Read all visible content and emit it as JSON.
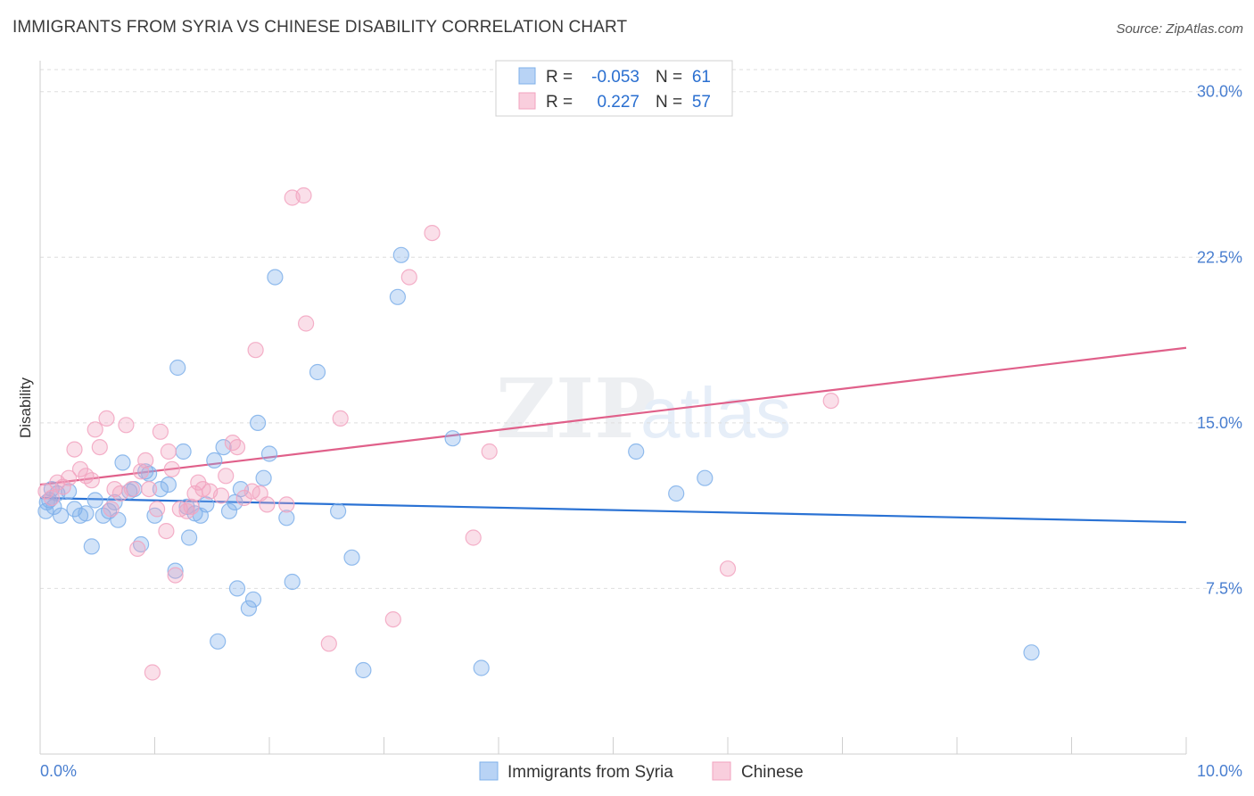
{
  "header": {
    "title": "IMMIGRANTS FROM SYRIA VS CHINESE DISABILITY CORRELATION CHART",
    "source": "Source: ZipAtlas.com"
  },
  "watermark": {
    "zip": "ZIP",
    "atlas": "atlas"
  },
  "legend": {
    "r_label": "R =",
    "n_label": "N =",
    "rows": [
      {
        "r_value": "-0.053",
        "n_value": "61"
      },
      {
        "r_value": "0.227",
        "n_value": "57"
      }
    ]
  },
  "colors": {
    "syria": "#7fb0ea",
    "chinese": "#f2a3bf",
    "syria_line": "#2a72d4",
    "chinese_line": "#e0608a",
    "value_text": "#2a6fd0",
    "grid": "#dedede"
  },
  "chart_data": {
    "type": "scatter",
    "title": "IMMIGRANTS FROM SYRIA VS CHINESE DISABILITY CORRELATION CHART",
    "xlabel": "",
    "ylabel": "Disability",
    "xlim": [
      0,
      10
    ],
    "ylim": [
      0,
      31
    ],
    "x_tick_labels": [
      "0.0%",
      "10.0%"
    ],
    "y_ticks": [
      7.5,
      15.0,
      22.5,
      30.0
    ],
    "y_tick_labels": [
      "7.5%",
      "15.0%",
      "22.5%",
      "30.0%"
    ],
    "grid": true,
    "series": [
      {
        "name": "Immigrants from Syria",
        "r": -0.053,
        "n": 61,
        "trend": {
          "x": [
            0,
            10
          ],
          "y": [
            11.6,
            10.5
          ]
        },
        "points": [
          [
            0.05,
            11.0
          ],
          [
            0.08,
            11.5
          ],
          [
            0.1,
            12.0
          ],
          [
            0.12,
            11.2
          ],
          [
            0.15,
            11.8
          ],
          [
            0.18,
            10.8
          ],
          [
            0.25,
            11.9
          ],
          [
            0.3,
            11.1
          ],
          [
            0.35,
            10.8
          ],
          [
            0.4,
            10.9
          ],
          [
            0.45,
            9.4
          ],
          [
            0.48,
            11.5
          ],
          [
            0.55,
            10.8
          ],
          [
            0.6,
            11.0
          ],
          [
            0.65,
            11.4
          ],
          [
            0.68,
            10.6
          ],
          [
            0.72,
            13.2
          ],
          [
            0.78,
            11.9
          ],
          [
            0.82,
            12.0
          ],
          [
            0.88,
            9.5
          ],
          [
            0.92,
            12.8
          ],
          [
            0.95,
            12.7
          ],
          [
            1.0,
            10.8
          ],
          [
            1.05,
            12.0
          ],
          [
            1.12,
            12.2
          ],
          [
            1.18,
            8.3
          ],
          [
            1.2,
            17.5
          ],
          [
            1.25,
            13.7
          ],
          [
            1.28,
            11.2
          ],
          [
            1.3,
            9.8
          ],
          [
            1.35,
            10.9
          ],
          [
            1.4,
            10.8
          ],
          [
            1.45,
            11.3
          ],
          [
            1.52,
            13.3
          ],
          [
            1.55,
            5.1
          ],
          [
            1.6,
            13.9
          ],
          [
            1.65,
            11.0
          ],
          [
            1.7,
            11.4
          ],
          [
            1.72,
            7.5
          ],
          [
            1.75,
            12.0
          ],
          [
            1.82,
            6.6
          ],
          [
            1.86,
            7.0
          ],
          [
            1.9,
            15.0
          ],
          [
            1.95,
            12.5
          ],
          [
            2.0,
            13.6
          ],
          [
            2.05,
            21.6
          ],
          [
            2.15,
            10.7
          ],
          [
            2.2,
            7.8
          ],
          [
            2.42,
            17.3
          ],
          [
            2.6,
            11.0
          ],
          [
            2.72,
            8.9
          ],
          [
            2.82,
            3.8
          ],
          [
            3.12,
            20.7
          ],
          [
            3.15,
            22.6
          ],
          [
            3.6,
            14.3
          ],
          [
            3.85,
            3.9
          ],
          [
            5.2,
            13.7
          ],
          [
            5.55,
            11.8
          ],
          [
            5.8,
            12.5
          ],
          [
            8.65,
            4.6
          ],
          [
            0.06,
            11.4
          ]
        ]
      },
      {
        "name": "Chinese",
        "r": 0.227,
        "n": 57,
        "trend": {
          "x": [
            0,
            10
          ],
          "y": [
            12.2,
            18.4
          ]
        },
        "points": [
          [
            0.05,
            11.9
          ],
          [
            0.1,
            11.6
          ],
          [
            0.15,
            12.3
          ],
          [
            0.2,
            12.1
          ],
          [
            0.25,
            12.5
          ],
          [
            0.3,
            13.8
          ],
          [
            0.35,
            12.9
          ],
          [
            0.4,
            12.6
          ],
          [
            0.45,
            12.4
          ],
          [
            0.48,
            14.7
          ],
          [
            0.52,
            13.9
          ],
          [
            0.58,
            15.2
          ],
          [
            0.62,
            11.1
          ],
          [
            0.65,
            12.0
          ],
          [
            0.7,
            11.8
          ],
          [
            0.75,
            14.9
          ],
          [
            0.8,
            12.0
          ],
          [
            0.85,
            9.3
          ],
          [
            0.88,
            12.8
          ],
          [
            0.92,
            13.3
          ],
          [
            0.95,
            12.0
          ],
          [
            0.98,
            3.7
          ],
          [
            1.02,
            11.1
          ],
          [
            1.05,
            14.6
          ],
          [
            1.1,
            10.1
          ],
          [
            1.12,
            13.7
          ],
          [
            1.15,
            12.9
          ],
          [
            1.18,
            8.1
          ],
          [
            1.22,
            11.1
          ],
          [
            1.28,
            11.0
          ],
          [
            1.32,
            11.2
          ],
          [
            1.35,
            11.8
          ],
          [
            1.38,
            12.3
          ],
          [
            1.42,
            12.0
          ],
          [
            1.48,
            11.9
          ],
          [
            1.58,
            11.7
          ],
          [
            1.62,
            12.6
          ],
          [
            1.68,
            14.1
          ],
          [
            1.72,
            13.9
          ],
          [
            1.78,
            11.6
          ],
          [
            1.85,
            11.9
          ],
          [
            1.88,
            18.3
          ],
          [
            1.92,
            11.8
          ],
          [
            1.98,
            11.3
          ],
          [
            2.15,
            11.3
          ],
          [
            2.2,
            25.2
          ],
          [
            2.3,
            25.3
          ],
          [
            2.32,
            19.5
          ],
          [
            2.52,
            5.0
          ],
          [
            2.62,
            15.2
          ],
          [
            3.08,
            6.1
          ],
          [
            3.22,
            21.6
          ],
          [
            3.42,
            23.6
          ],
          [
            3.78,
            9.8
          ],
          [
            3.92,
            13.7
          ],
          [
            6.0,
            8.4
          ],
          [
            6.9,
            16.0
          ]
        ]
      }
    ]
  },
  "bottom_legend": {
    "items": [
      {
        "label": "Immigrants from Syria"
      },
      {
        "label": "Chinese"
      }
    ]
  }
}
